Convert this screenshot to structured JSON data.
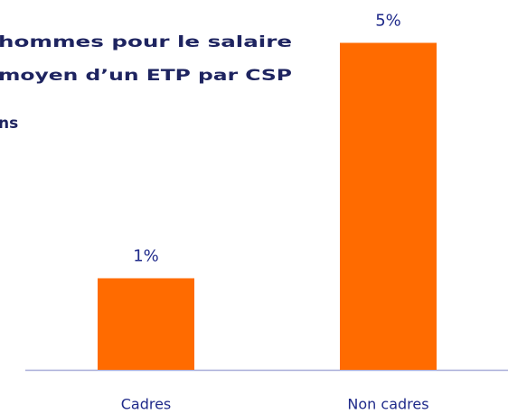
{
  "chart_data": {
    "type": "bar",
    "title_lines": [
      "hommes pour le salaire",
      "moyen d’un ETP par CSP",
      "ns"
    ],
    "categories": [
      "Cadres",
      "Non cadres"
    ],
    "values": [
      1.4,
      5
    ],
    "value_labels": [
      "1%",
      "5%"
    ],
    "color": "#ff6b00",
    "ylim": [
      0,
      5.6
    ]
  }
}
